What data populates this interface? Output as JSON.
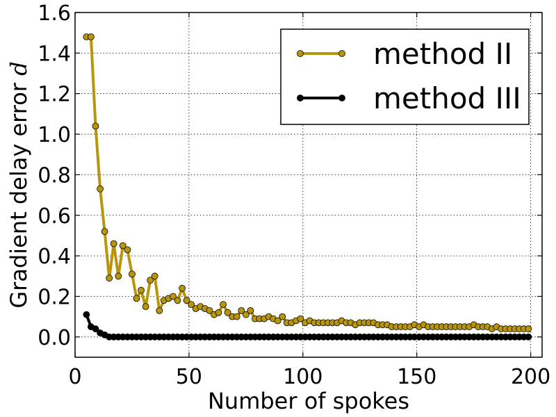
{
  "chart_data": {
    "type": "line",
    "title": "",
    "xlabel": "Number of spokes",
    "ylabel": "Gradient delay error ",
    "ylabel_symbol": "d",
    "xlim": [
      0,
      205
    ],
    "ylim": [
      -0.1,
      1.6
    ],
    "xticks": [
      "0",
      "50",
      "100",
      "150",
      "200"
    ],
    "yticks": [
      "0.0",
      "0.2",
      "0.4",
      "0.6",
      "0.8",
      "1.0",
      "1.2",
      "1.4",
      "1.6"
    ],
    "grid": true,
    "legend_position": "top-right",
    "series": [
      {
        "name": "method II",
        "color": "#b8960c",
        "marker_color": "#b8960c",
        "x": [
          5,
          7,
          9,
          11,
          13,
          15,
          17,
          19,
          21,
          23,
          25,
          27,
          29,
          31,
          33,
          35,
          37,
          39,
          41,
          43,
          45,
          47,
          49,
          51,
          53,
          55,
          57,
          59,
          61,
          63,
          65,
          67,
          69,
          71,
          73,
          75,
          77,
          79,
          81,
          83,
          85,
          87,
          89,
          91,
          93,
          95,
          97,
          99,
          101,
          103,
          105,
          107,
          109,
          111,
          113,
          115,
          117,
          119,
          121,
          123,
          125,
          127,
          129,
          131,
          133,
          135,
          137,
          139,
          141,
          143,
          145,
          147,
          149,
          151,
          153,
          155,
          157,
          159,
          161,
          163,
          165,
          167,
          169,
          171,
          173,
          175,
          177,
          179,
          181,
          183,
          185,
          187,
          189,
          191,
          193,
          195,
          197,
          199
        ],
        "y": [
          1.48,
          1.48,
          1.04,
          0.73,
          0.52,
          0.29,
          0.46,
          0.3,
          0.45,
          0.43,
          0.31,
          0.19,
          0.23,
          0.15,
          0.28,
          0.3,
          0.13,
          0.18,
          0.19,
          0.2,
          0.18,
          0.24,
          0.18,
          0.16,
          0.14,
          0.15,
          0.14,
          0.13,
          0.11,
          0.12,
          0.16,
          0.12,
          0.1,
          0.1,
          0.13,
          0.11,
          0.13,
          0.09,
          0.09,
          0.09,
          0.1,
          0.09,
          0.08,
          0.1,
          0.07,
          0.07,
          0.08,
          0.09,
          0.07,
          0.08,
          0.07,
          0.07,
          0.07,
          0.07,
          0.07,
          0.07,
          0.08,
          0.07,
          0.07,
          0.06,
          0.07,
          0.07,
          0.07,
          0.07,
          0.06,
          0.06,
          0.06,
          0.05,
          0.05,
          0.05,
          0.05,
          0.05,
          0.06,
          0.05,
          0.06,
          0.05,
          0.05,
          0.05,
          0.05,
          0.05,
          0.05,
          0.05,
          0.05,
          0.05,
          0.05,
          0.06,
          0.05,
          0.05,
          0.05,
          0.04,
          0.05,
          0.04,
          0.04,
          0.04,
          0.04,
          0.04,
          0.04,
          0.04
        ]
      },
      {
        "name": "method III",
        "color": "#000000",
        "marker_color": "#000000",
        "x": [
          5,
          7,
          9,
          11,
          13,
          15,
          17,
          19,
          21,
          23,
          25,
          27,
          29,
          31,
          33,
          35,
          37,
          39,
          41,
          43,
          45,
          47,
          49,
          51,
          53,
          55,
          57,
          59,
          61,
          63,
          65,
          67,
          69,
          71,
          73,
          75,
          77,
          79,
          81,
          83,
          85,
          87,
          89,
          91,
          93,
          95,
          97,
          99,
          101,
          103,
          105,
          107,
          109,
          111,
          113,
          115,
          117,
          119,
          121,
          123,
          125,
          127,
          129,
          131,
          133,
          135,
          137,
          139,
          141,
          143,
          145,
          147,
          149,
          151,
          153,
          155,
          157,
          159,
          161,
          163,
          165,
          167,
          169,
          171,
          173,
          175,
          177,
          179,
          181,
          183,
          185,
          187,
          189,
          191,
          193,
          195,
          197,
          199
        ],
        "y": [
          0.11,
          0.05,
          0.04,
          0.02,
          0.01,
          0.0,
          0.0,
          0.0,
          0.0,
          0.0,
          0.0,
          0.0,
          0.0,
          0.0,
          0.0,
          0.0,
          0.0,
          0.0,
          0.0,
          0.0,
          0.0,
          0.0,
          0.0,
          0.0,
          0.0,
          0.0,
          0.0,
          0.0,
          0.0,
          0.0,
          0.0,
          0.0,
          0.0,
          0.0,
          0.0,
          0.0,
          0.0,
          0.0,
          0.0,
          0.0,
          0.0,
          0.0,
          0.0,
          0.0,
          0.0,
          0.0,
          0.0,
          0.0,
          0.0,
          0.0,
          0.0,
          0.0,
          0.0,
          0.0,
          0.0,
          0.0,
          0.0,
          0.0,
          0.0,
          0.0,
          0.0,
          0.0,
          0.0,
          0.0,
          0.0,
          0.0,
          0.0,
          0.0,
          0.0,
          0.0,
          0.0,
          0.0,
          0.0,
          0.0,
          0.0,
          0.0,
          0.0,
          0.0,
          0.0,
          0.0,
          0.0,
          0.0,
          0.0,
          0.0,
          0.0,
          0.0,
          0.0,
          0.0,
          0.0,
          0.0,
          0.0,
          0.0,
          0.0,
          0.0,
          0.0,
          0.0,
          0.0,
          0.0
        ]
      }
    ]
  }
}
